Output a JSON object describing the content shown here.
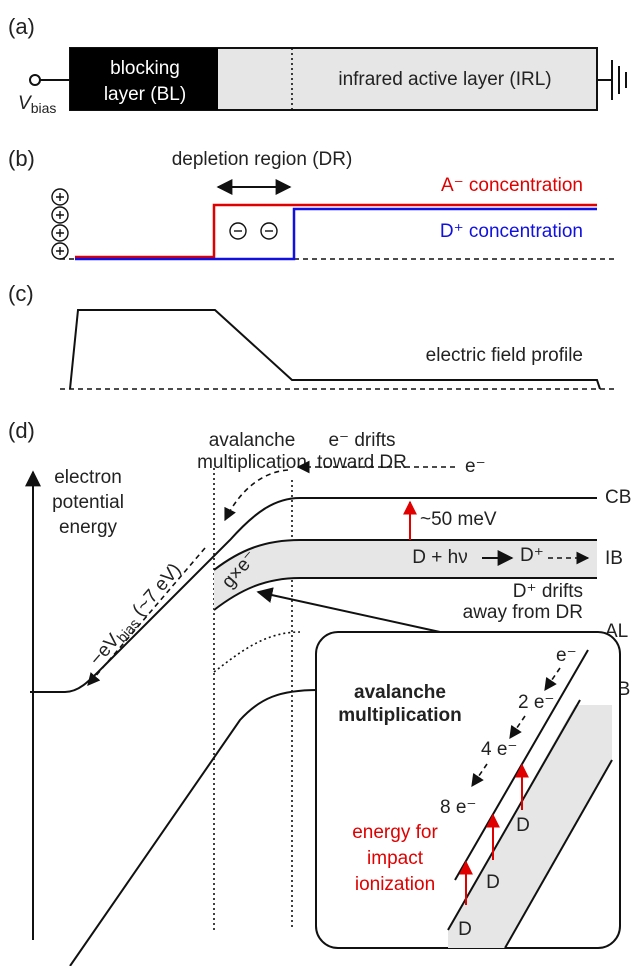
{
  "panel_a": {
    "label": "(a)",
    "bias_symbol": "V",
    "bias_subscript": "bias",
    "blocking_layer": [
      "blocking",
      "layer (BL)"
    ],
    "active_layer": "infrared active layer (IRL)"
  },
  "panel_b": {
    "label": "(b)",
    "depletion_region": "depletion region (DR)",
    "acceptor": "A⁻ concentration",
    "donor": "D⁺ concentration"
  },
  "panel_c": {
    "label": "(c)",
    "field_profile": "electric field profile"
  },
  "panel_d": {
    "label": "(d)",
    "y_axis": [
      "electron",
      "potential",
      "energy"
    ],
    "avalanche": [
      "avalanche",
      "multiplication"
    ],
    "drift_toward": [
      "e⁻ drifts",
      "toward DR"
    ],
    "electron": "e⁻",
    "bands": {
      "cb": "CB",
      "ib": "IB",
      "al": "AL",
      "vb": "VB"
    },
    "gap": "~50 meV",
    "absorption": "D + hν",
    "ionized_donor": "D⁺",
    "drift_away": [
      "D⁺ drifts",
      "away from DR"
    ],
    "bias_drop": {
      "prefix": "−eV",
      "subscript": "bias",
      "suffix": " (~7 eV)"
    },
    "gain": "g×e⁻",
    "inset": {
      "title": [
        "avalanche",
        "multiplication"
      ],
      "electrons": [
        "e⁻",
        "2 e⁻",
        "4 e⁻",
        "8 e⁻"
      ],
      "donors": [
        "D",
        "D",
        "D"
      ],
      "energy_note": [
        "energy for",
        "impact",
        "ionization"
      ]
    }
  }
}
